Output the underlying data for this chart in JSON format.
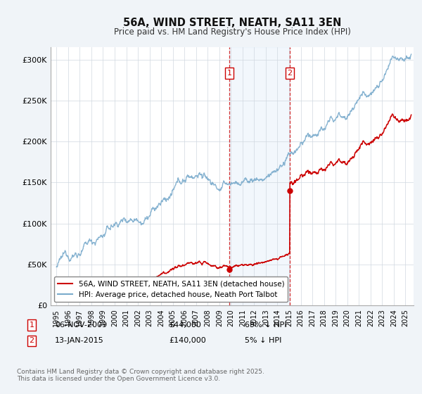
{
  "title": "56A, WIND STREET, NEATH, SA11 3EN",
  "subtitle": "Price paid vs. HM Land Registry's House Price Index (HPI)",
  "ylabel_ticks": [
    "£0",
    "£50K",
    "£100K",
    "£150K",
    "£200K",
    "£250K",
    "£300K"
  ],
  "ytick_vals": [
    0,
    50000,
    100000,
    150000,
    200000,
    250000,
    300000
  ],
  "ylim": [
    0,
    315000
  ],
  "xlim_start": 1994.5,
  "xlim_end": 2025.7,
  "legend_line1": "56A, WIND STREET, NEATH, SA11 3EN (detached house)",
  "legend_line2": "HPI: Average price, detached house, Neath Port Talbot",
  "red_color": "#cc0000",
  "blue_color": "#7aabcc",
  "sale1_date": "06-NOV-2009",
  "sale1_price": "£44,000",
  "sale1_hpi": "69% ↓ HPI",
  "sale1_x": 2009.85,
  "sale1_y": 44000,
  "sale2_date": "13-JAN-2015",
  "sale2_price": "£140,000",
  "sale2_hpi": "5% ↓ HPI",
  "sale2_x": 2015.05,
  "sale2_y": 140000,
  "footnote": "Contains HM Land Registry data © Crown copyright and database right 2025.\nThis data is licensed under the Open Government Licence v3.0.",
  "shaded_start": 2009.85,
  "shaded_end": 2015.05,
  "background_color": "#f0f4f8",
  "plot_bg": "#ffffff"
}
